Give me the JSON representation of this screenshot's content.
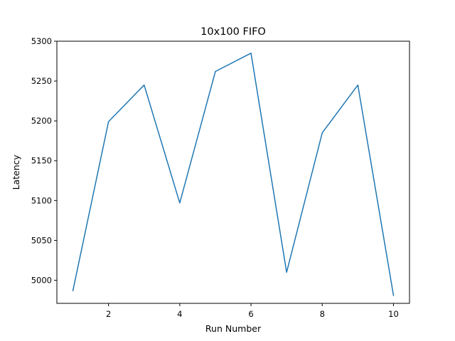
{
  "chart_data": {
    "type": "line",
    "title": "10x100 FIFO",
    "xlabel": "Run Number",
    "ylabel": "Latency",
    "xlim": [
      0.55,
      10.45
    ],
    "ylim": [
      4971,
      5300
    ],
    "xticks": [
      2,
      4,
      6,
      8,
      10
    ],
    "yticks": [
      5000,
      5050,
      5100,
      5150,
      5200,
      5250,
      5300
    ],
    "grid": false,
    "legend": "none",
    "series": [
      {
        "color": "#1f77b4",
        "x": [
          1,
          2,
          3,
          4,
          5,
          6,
          7,
          8,
          9,
          10
        ],
        "values": [
          4987,
          5199,
          5245,
          5097,
          5262,
          5285,
          5010,
          5185,
          5245,
          4981
        ]
      }
    ]
  }
}
